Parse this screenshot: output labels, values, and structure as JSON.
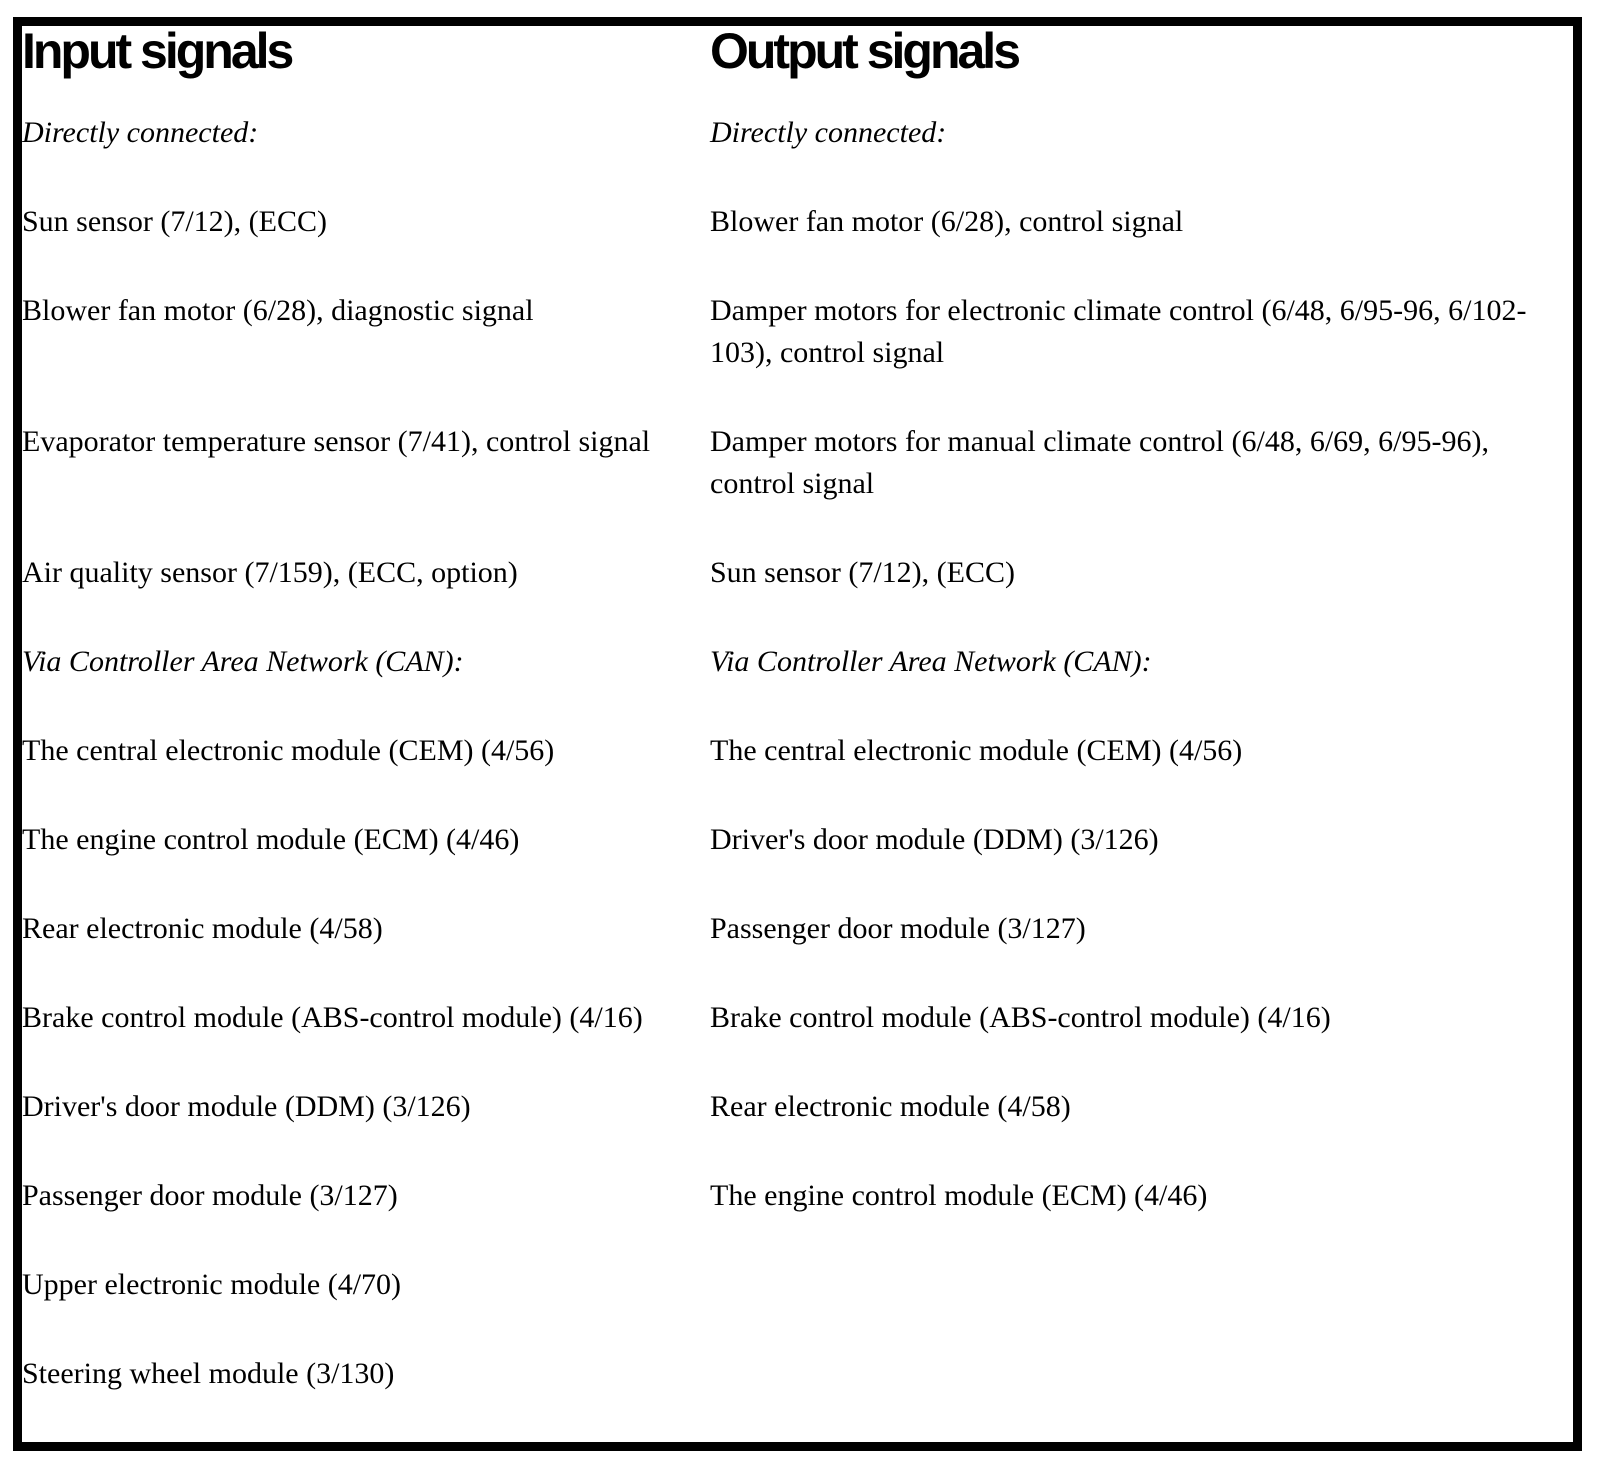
{
  "table": {
    "headers": {
      "input": "Input signals",
      "output": "Output signals"
    },
    "rows": [
      {
        "left": "Directly connected:",
        "right": "Directly connected:"
      },
      {
        "left": "Sun sensor (7/12), (ECC)",
        "right": "Blower fan motor (6/28), control signal"
      },
      {
        "left": "Blower fan motor (6/28), diagnostic signal",
        "right": "Damper motors for electronic climate control (6/48, 6/95-96, 6/102-103), control signal"
      },
      {
        "left": "Evaporator temperature sensor (7/41), control signal",
        "right": "Damper motors for manual climate control (6/48, 6/69, 6/95-96), control signal"
      },
      {
        "left": "Air quality sensor (7/159), (ECC, option)",
        "right": "Sun sensor (7/12), (ECC)"
      },
      {
        "left": "Via Controller Area Network (CAN):",
        "right": "Via Controller Area Network (CAN):"
      },
      {
        "left": "The central electronic module (CEM) (4/56)",
        "right": "The central electronic module (CEM) (4/56)"
      },
      {
        "left": "The engine control module (ECM) (4/46)",
        "right": "Driver's door module (DDM) (3/126)"
      },
      {
        "left": "Rear electronic module (4/58)",
        "right": "Passenger door module (3/127)"
      },
      {
        "left": "Brake control module (ABS-control module) (4/16)",
        "right": "Brake control module (ABS-control module) (4/16)"
      },
      {
        "left": "Driver's door module (DDM) (3/126)",
        "right": "Rear electronic module (4/58)"
      },
      {
        "left": "Passenger door module (3/127)",
        "right": "The engine control module (ECM) (4/46)"
      },
      {
        "left": "Upper electronic module (4/70)",
        "right": ""
      },
      {
        "left": "Steering wheel module (3/130)",
        "right": ""
      }
    ]
  }
}
